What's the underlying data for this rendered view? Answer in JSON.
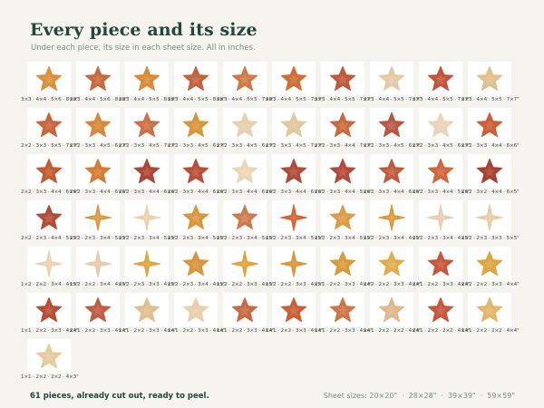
{
  "header": {
    "title": "Every piece and its size",
    "subtitle": "Under each piece, its size in each sheet size. All in inches."
  },
  "footer": {
    "pieces_note": "61 pieces, already cut out, ready to peel.",
    "sheet_sizes_label": "Sheet sizes: 20×20\"",
    "sheet_sizes": [
      "28×28\"",
      "39×39\"",
      "59×59\""
    ]
  },
  "colors": {
    "rust": "#b4512e",
    "terracotta": "#c96a3c",
    "orange": "#d9873a",
    "ochre": "#d89a34",
    "sand": "#e6c39a",
    "beige": "#ecd4b2",
    "brick": "#a9442e"
  },
  "pieces": [
    {
      "sizes": "3×3 · 4×4 · 5×6 · 8×8\"",
      "shape": "star5",
      "color": "#d9923a"
    },
    {
      "sizes": "3×3 · 4×4 · 5×6 · 8×8\"",
      "shape": "star5",
      "color": "#c9683b"
    },
    {
      "sizes": "3×3 · 4×4 · 5×5 · 8×8\"",
      "shape": "star5",
      "color": "#d98b36"
    },
    {
      "sizes": "3×3 · 4×4 · 5×5 · 8×8\"",
      "shape": "star5",
      "color": "#c4603c"
    },
    {
      "sizes": "3×3 · 4×4 · 5×5 · 7×8\"",
      "shape": "star5",
      "color": "#cf7a45"
    },
    {
      "sizes": "3×3 · 4×4 · 5×5 · 7×7\"",
      "shape": "star5",
      "color": "#cf6d35"
    },
    {
      "sizes": "3×3 · 4×4 · 5×5 · 7×7\"",
      "shape": "star5",
      "color": "#c0583a"
    },
    {
      "sizes": "3×3 · 4×4 · 5×5 · 7×7\"",
      "shape": "star5",
      "color": "#e7c9a6"
    },
    {
      "sizes": "3×3 · 4×4 · 5×5 · 7×7\"",
      "shape": "star5",
      "color": "#c4533a"
    },
    {
      "sizes": "3×3 · 4×4 · 5×5 · 7×7\"",
      "shape": "star5",
      "color": "#e2c08e"
    },
    {
      "sizes": "2×2 · 3×3 · 5×5 · 7×7\"",
      "shape": "star5",
      "color": "#c9643a"
    },
    {
      "sizes": "2×2 · 3×3 · 4×5 · 6×7\"",
      "shape": "star5",
      "color": "#d9883b"
    },
    {
      "sizes": "2×2 · 3×3 · 4×5 · 7×7\"",
      "shape": "star5",
      "color": "#cf6f48"
    },
    {
      "sizes": "2×2 · 3×3 · 4×5 · 6×7\"",
      "shape": "star5",
      "color": "#d9963a"
    },
    {
      "sizes": "2×2 · 3×3 · 4×5 · 6×7\"",
      "shape": "star5",
      "color": "#e8cfae"
    },
    {
      "sizes": "2×2 · 3×3 · 4×5 · 7×7\"",
      "shape": "star5",
      "color": "#e2c7a0"
    },
    {
      "sizes": "2×2 · 3×3 · 4×4 · 7×7\"",
      "shape": "star5",
      "color": "#c86a3f"
    },
    {
      "sizes": "2×2 · 3×3 · 4×5 · 6×7\"",
      "shape": "star5",
      "color": "#b95744"
    },
    {
      "sizes": "2×2 · 3×3 · 4×5 · 6×7\"",
      "shape": "star5",
      "color": "#ead3b6"
    },
    {
      "sizes": "2×2 · 3×3 · 4×4 · 6×6\"",
      "shape": "star5",
      "color": "#cc5e36"
    },
    {
      "sizes": "2×2 · 3×3 · 4×4 · 6×6\"",
      "shape": "star5",
      "color": "#c45a33"
    },
    {
      "sizes": "2×2 · 3×3 · 4×4 · 6×6\"",
      "shape": "star5",
      "color": "#d67c33"
    },
    {
      "sizes": "2×2 · 3×3 · 4×4 · 6×6\"",
      "shape": "star5",
      "color": "#ad4434"
    },
    {
      "sizes": "2×2 · 3×3 · 4×4 · 6×6\"",
      "shape": "star5",
      "color": "#b84e38"
    },
    {
      "sizes": "2×2 · 3×3 · 4×4 · 6×6\"",
      "shape": "star5",
      "color": "#ecd6b8"
    },
    {
      "sizes": "2×2 · 3×3 · 4×4 · 6×6\"",
      "shape": "star5",
      "color": "#b14a37"
    },
    {
      "sizes": "2×2 · 3×3 · 4×4 · 5×6\"",
      "shape": "star5",
      "color": "#b6483a"
    },
    {
      "sizes": "2×2 · 3×3 · 4×4 · 6×6\"",
      "shape": "star5",
      "color": "#c25a3e"
    },
    {
      "sizes": "2×2 · 3×3 · 4×4 · 5×6\"",
      "shape": "star5",
      "color": "#d2653a"
    },
    {
      "sizes": "2×2 · 3×2 · 4×4 · 6×5\"",
      "shape": "star5",
      "color": "#a74230"
    },
    {
      "sizes": "2×2 · 2×3 · 4×4 · 5×5\"",
      "shape": "star5",
      "color": "#b34c35"
    },
    {
      "sizes": "2×2 · 2×3 · 3×4 · 5×5\"",
      "shape": "star4",
      "color": "#d89a3c"
    },
    {
      "sizes": "2×2 · 2×3 · 3×4 · 5×5\"",
      "shape": "star4",
      "color": "#ebd1ae"
    },
    {
      "sizes": "2×2 · 2×3 · 3×4 · 5×5\"",
      "shape": "star5",
      "color": "#d9963d"
    },
    {
      "sizes": "2×2 · 2×3 · 3×4 · 5×5\"",
      "shape": "star5",
      "color": "#cf7a4e"
    },
    {
      "sizes": "2×2 · 2×3 · 3×4 · 5×5\"",
      "shape": "star4",
      "color": "#d4632f"
    },
    {
      "sizes": "2×2 · 2×3 · 3×4 · 5×5\"",
      "shape": "star5",
      "color": "#de9a45"
    },
    {
      "sizes": "2×2 · 2×3 · 3×4 · 4×5\"",
      "shape": "star4",
      "color": "#dd9a3a"
    },
    {
      "sizes": "2×2 · 2×3 · 3×4 · 4×5\"",
      "shape": "star4",
      "color": "#e9cfb2"
    },
    {
      "sizes": "2×2 · 2×3 · 3×3 · 5×5\"",
      "shape": "star4",
      "color": "#e7cba5"
    },
    {
      "sizes": "1×2 · 2×2 · 3×4 · 4×5\"",
      "shape": "star4",
      "color": "#ebd2b4"
    },
    {
      "sizes": "1×2 · 2×2 · 3×4 · 4×5\"",
      "shape": "star4",
      "color": "#e5c9a6"
    },
    {
      "sizes": "2×2 · 2×3 · 3×3 · 4×5\"",
      "shape": "star4",
      "color": "#dda33f"
    },
    {
      "sizes": "2×2 · 2×3 · 3×4 · 4×5\"",
      "shape": "star5",
      "color": "#d8953d"
    },
    {
      "sizes": "1×2 · 2×2 · 3×3 · 4×5\"",
      "shape": "star4",
      "color": "#e0a13a"
    },
    {
      "sizes": "1×2 · 2×2 · 3×3 · 4×5\"",
      "shape": "star4",
      "color": "#d99536"
    },
    {
      "sizes": "2×1 · 2×2 · 3×3 · 4×4\"",
      "shape": "star5",
      "color": "#d99a3a"
    },
    {
      "sizes": "2×2 · 2×2 · 3×3 · 4×4\"",
      "shape": "star5",
      "color": "#e3ab4c"
    },
    {
      "sizes": "2×1 · 2×2 · 3×3 · 4×4\"",
      "shape": "star5",
      "color": "#c9553a"
    },
    {
      "sizes": "2×2 · 2×2 · 3×3 · 4×4\"",
      "shape": "star5",
      "color": "#dea43f"
    },
    {
      "sizes": "1×1 · 2×2 · 3×3 · 4×4\"",
      "shape": "star5",
      "color": "#b74c32"
    },
    {
      "sizes": "2×1 · 2×2 · 3×3 · 4×4\"",
      "shape": "star5",
      "color": "#c25c40"
    },
    {
      "sizes": "1×1 · 2×2 · 3×3 · 4×4\"",
      "shape": "star5",
      "color": "#e2c08e"
    },
    {
      "sizes": "1×1 · 2×2 · 3×3 · 4×4\"",
      "shape": "star5",
      "color": "#e9cfab"
    },
    {
      "sizes": "1×1 · 2×2 · 3×3 · 4×4\"",
      "shape": "star5",
      "color": "#c66a44"
    },
    {
      "sizes": "1×1 · 2×2 · 3×3 · 4×4\"",
      "shape": "star5",
      "color": "#c95f36"
    },
    {
      "sizes": "1×1 · 2×2 · 3×3 · 4×4\"",
      "shape": "star5",
      "color": "#cf7446"
    },
    {
      "sizes": "1×1 · 2×2 · 2×2 · 4×4\"",
      "shape": "star5",
      "color": "#e0b88d"
    },
    {
      "sizes": "2×1 · 2×2 · 2×2 · 4×4\"",
      "shape": "star5",
      "color": "#c5563c"
    },
    {
      "sizes": "1×1 · 2×2 · 2×2 · 4×4\"",
      "shape": "star5",
      "color": "#e2b56a"
    },
    {
      "sizes": "1×1 · 2×2 · 2×2 · 4×3\"",
      "shape": "star5",
      "color": "#e8ca9f"
    }
  ]
}
